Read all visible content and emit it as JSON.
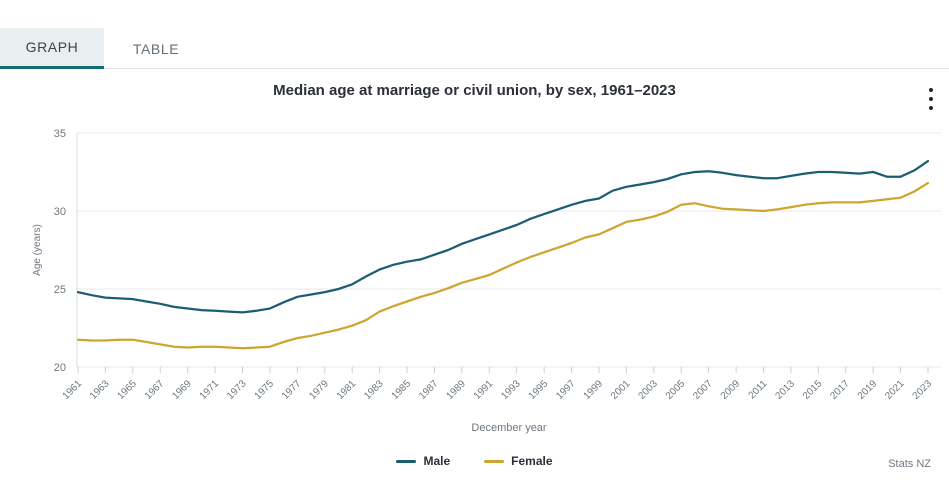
{
  "tabs": [
    {
      "label": "GRAPH",
      "active": true
    },
    {
      "label": "TABLE",
      "active": false
    }
  ],
  "menu": {
    "kebab_icon": "vertical-three-dots"
  },
  "footer": {
    "source": "Stats NZ"
  },
  "colors": {
    "accent_teal": "#136b77",
    "active_tab_bg": "#e9eef0",
    "male_line": "#1b5e74",
    "female_line": "#cda62f",
    "gridline": "#e7e8ea",
    "axis_text": "#6e7780"
  },
  "chart_data": {
    "type": "line",
    "title": "Median age at marriage or civil union, by sex, 1961–2023",
    "xlabel": "December year",
    "ylabel": "Age (years)",
    "ylim": [
      20,
      35
    ],
    "yticks": [
      20,
      25,
      30,
      35
    ],
    "x_tick_step": 2,
    "grid": "horizontal-only",
    "legend_position": "bottom-center",
    "x": [
      1961,
      1962,
      1963,
      1964,
      1965,
      1966,
      1967,
      1968,
      1969,
      1970,
      1971,
      1972,
      1973,
      1974,
      1975,
      1976,
      1977,
      1978,
      1979,
      1980,
      1981,
      1982,
      1983,
      1984,
      1985,
      1986,
      1987,
      1988,
      1989,
      1990,
      1991,
      1992,
      1993,
      1994,
      1995,
      1996,
      1997,
      1998,
      1999,
      2000,
      2001,
      2002,
      2003,
      2004,
      2005,
      2006,
      2007,
      2008,
      2009,
      2010,
      2011,
      2012,
      2013,
      2014,
      2015,
      2016,
      2017,
      2018,
      2019,
      2020,
      2021,
      2022,
      2023
    ],
    "xtick_labels": [
      "1961",
      "1963",
      "1965",
      "1967",
      "1969",
      "1971",
      "1973",
      "1975",
      "1977",
      "1979",
      "1981",
      "1983",
      "1985",
      "1987",
      "1989",
      "1991",
      "1993",
      "1995",
      "1997",
      "1999",
      "2001",
      "2003",
      "2005",
      "2007",
      "2009",
      "2011",
      "2013",
      "2015",
      "2017",
      "2019",
      "2021",
      "2023"
    ],
    "series": [
      {
        "name": "Male",
        "color": "#1b5e74",
        "values": [
          24.8,
          24.6,
          24.45,
          24.4,
          24.35,
          24.2,
          24.05,
          23.85,
          23.75,
          23.65,
          23.6,
          23.55,
          23.5,
          23.6,
          23.75,
          24.15,
          24.5,
          24.65,
          24.8,
          25.0,
          25.3,
          25.8,
          26.25,
          26.55,
          26.75,
          26.9,
          27.2,
          27.5,
          27.9,
          28.2,
          28.5,
          28.8,
          29.1,
          29.5,
          29.8,
          30.1,
          30.4,
          30.65,
          30.8,
          31.3,
          31.55,
          31.7,
          31.85,
          32.05,
          32.35,
          32.5,
          32.55,
          32.45,
          32.3,
          32.2,
          32.1,
          32.1,
          32.25,
          32.4,
          32.5,
          32.5,
          32.45,
          32.4,
          32.5,
          32.2,
          32.2,
          32.6,
          33.2
        ]
      },
      {
        "name": "Female",
        "color": "#cda62f",
        "values": [
          21.75,
          21.7,
          21.7,
          21.75,
          21.75,
          21.6,
          21.45,
          21.3,
          21.25,
          21.3,
          21.3,
          21.25,
          21.2,
          21.25,
          21.3,
          21.6,
          21.85,
          22.0,
          22.2,
          22.4,
          22.65,
          23.0,
          23.55,
          23.9,
          24.2,
          24.5,
          24.75,
          25.05,
          25.4,
          25.65,
          25.9,
          26.3,
          26.7,
          27.05,
          27.35,
          27.65,
          27.95,
          28.3,
          28.5,
          28.9,
          29.3,
          29.45,
          29.65,
          29.95,
          30.4,
          30.5,
          30.3,
          30.15,
          30.1,
          30.05,
          30.0,
          30.1,
          30.25,
          30.4,
          30.5,
          30.55,
          30.55,
          30.55,
          30.65,
          30.75,
          30.85,
          31.25,
          31.8
        ]
      }
    ]
  }
}
